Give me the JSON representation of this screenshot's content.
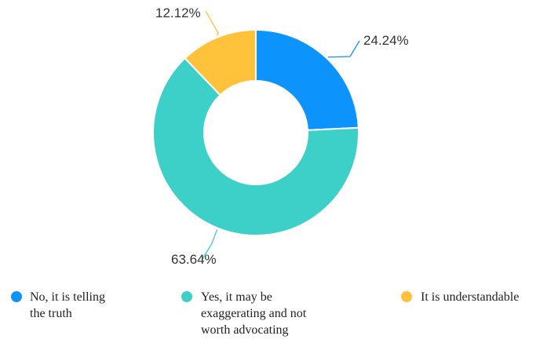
{
  "chart_data": {
    "type": "pie",
    "categories": [
      "No, it is telling the truth",
      "Yes, it may be exaggerating and not worth advocating",
      "It is understandable"
    ],
    "values": [
      24.24,
      63.64,
      12.12
    ],
    "data_labels": [
      "24.24%",
      "63.64%",
      "12.12%"
    ],
    "legend": {
      "position": "bottom",
      "entries": [
        {
          "lines": [
            "No, it is telling",
            "the truth"
          ]
        },
        {
          "lines": [
            "Yes, it may be",
            "exaggerating and not",
            "worth advocating"
          ]
        },
        {
          "lines": [
            "It is understandable"
          ]
        }
      ]
    },
    "colors": [
      "#0D94FC",
      "#3DD0C8",
      "#FFC23A"
    ],
    "donut": true
  }
}
